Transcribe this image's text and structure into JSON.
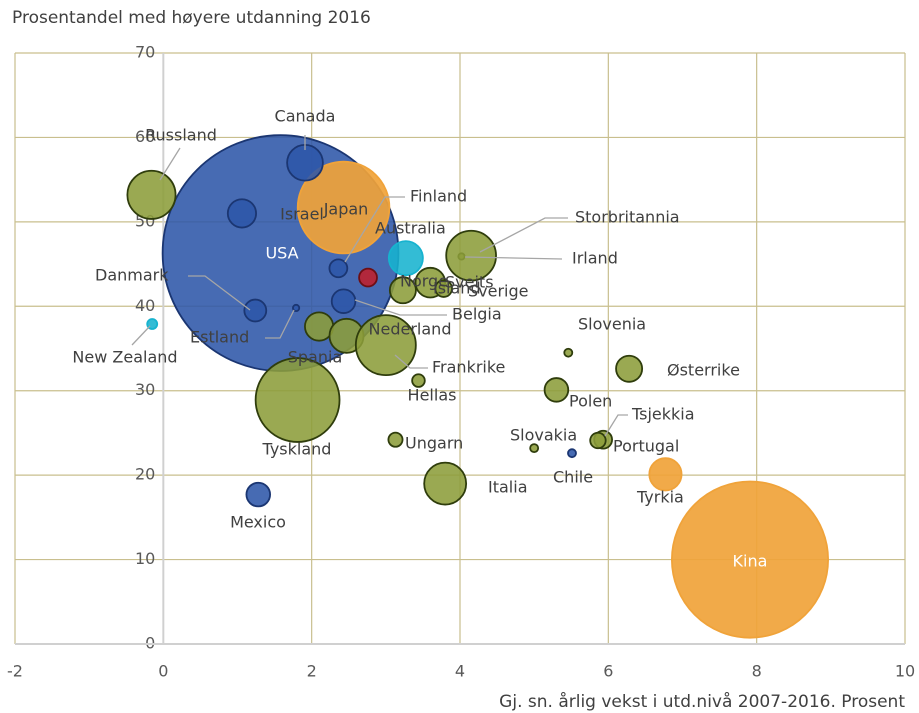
{
  "chart_data": {
    "type": "bubble",
    "title": "Prosentandel med høyere utdanning 2016",
    "x_label": "Gj. sn. årlig vekst i utd.nivå 2007-2016. Prosent",
    "xlim": [
      -2,
      10
    ],
    "xticks": [
      -2,
      0,
      2,
      4,
      6,
      8,
      10
    ],
    "ylim": [
      0,
      70
    ],
    "yticks": [
      0,
      10,
      20,
      30,
      40,
      50,
      60,
      70
    ],
    "grid": true,
    "points": [
      {
        "name": "USA",
        "x": 1.58,
        "y": 46.3,
        "size": 139,
        "color": "#2e57a8"
      },
      {
        "name": "Kina",
        "x": 7.91,
        "y": 10,
        "size": 61,
        "color": "#f0a33a"
      },
      {
        "name": "Tyskland",
        "x": 1.81,
        "y": 28.9,
        "size": 17.6,
        "color": "#8c9d3a"
      },
      {
        "name": "Japan",
        "x": 2.43,
        "y": 51.7,
        "size": 21,
        "color": "#f0a33a"
      },
      {
        "name": "Canada",
        "x": 1.91,
        "y": 57,
        "size": 3.2,
        "color": "#2e57a8"
      },
      {
        "name": "Israel",
        "x": 1.06,
        "y": 51,
        "size": 2,
        "color": "#2e57a8"
      },
      {
        "name": "Russland",
        "x": -0.16,
        "y": 53.2,
        "size": 5.8,
        "color": "#8c9d3a"
      },
      {
        "name": "Finland",
        "x": 2.36,
        "y": 44.5,
        "size": 0.8,
        "color": "#2e57a8"
      },
      {
        "name": "Australia",
        "x": 3.27,
        "y": 45.7,
        "size": 2.9,
        "color": "#17b3cf"
      },
      {
        "name": "Norge",
        "x": 2.76,
        "y": 43.4,
        "size": 0.8,
        "color": "#c01f2b"
      },
      {
        "name": "Sveits",
        "x": 3.6,
        "y": 42.8,
        "size": 2.2,
        "color": "#8c9d3a"
      },
      {
        "name": "Island",
        "x": 3.23,
        "y": 41.9,
        "size": 1.7,
        "color": "#8c9d3a"
      },
      {
        "name": "Sverige",
        "x": 3.78,
        "y": 42.1,
        "size": 0.7,
        "color": "#8c9d3a"
      },
      {
        "name": "Irland",
        "x": 4.02,
        "y": 45.9,
        "size": 0.1,
        "color": "#8c9d3a"
      },
      {
        "name": "Storbritannia",
        "x": 4.15,
        "y": 46,
        "size": 6.2,
        "color": "#8c9d3a"
      },
      {
        "name": "Danmark",
        "x": 1.24,
        "y": 39.5,
        "size": 1.2,
        "color": "#2e57a8"
      },
      {
        "name": "Estland",
        "x": 1.79,
        "y": 39.8,
        "size": 0.1,
        "color": "#2e57a8"
      },
      {
        "name": "Belgia",
        "x": 2.43,
        "y": 40.6,
        "size": 1.4,
        "color": "#2e57a8"
      },
      {
        "name": "Spania",
        "x": 2.1,
        "y": 37.6,
        "size": 2,
        "color": "#8c9d3a"
      },
      {
        "name": "Nederland",
        "x": 2.47,
        "y": 36.5,
        "size": 2.9,
        "color": "#8c9d3a"
      },
      {
        "name": "Frankrike",
        "x": 3,
        "y": 35.4,
        "size": 9,
        "color": "#8c9d3a"
      },
      {
        "name": "Hellas",
        "x": 3.44,
        "y": 31.2,
        "size": 0.4,
        "color": "#8c9d3a"
      },
      {
        "name": "New Zealand",
        "x": -0.15,
        "y": 37.9,
        "size": 0.25,
        "color": "#17b3cf"
      },
      {
        "name": "Slovenia",
        "x": 5.46,
        "y": 34.5,
        "size": 0.16,
        "color": "#8c9d3a"
      },
      {
        "name": "Østerrike",
        "x": 6.28,
        "y": 32.6,
        "size": 1.7,
        "color": "#8c9d3a"
      },
      {
        "name": "Polen",
        "x": 5.3,
        "y": 30.1,
        "size": 1.4,
        "color": "#8c9d3a"
      },
      {
        "name": "Tsjekkia",
        "x": 5.93,
        "y": 24.2,
        "size": 0.8,
        "color": "#8c9d3a"
      },
      {
        "name": "Portugal",
        "x": 5.86,
        "y": 24.1,
        "size": 0.6,
        "color": "#8c9d3a"
      },
      {
        "name": "Slovakia",
        "x": 5,
        "y": 23.2,
        "size": 0.16,
        "color": "#8c9d3a"
      },
      {
        "name": "Chile",
        "x": 5.51,
        "y": 22.6,
        "size": 0.16,
        "color": "#2e57a8"
      },
      {
        "name": "Ungarn",
        "x": 3.13,
        "y": 24.2,
        "size": 0.5,
        "color": "#8c9d3a"
      },
      {
        "name": "Italia",
        "x": 3.8,
        "y": 19,
        "size": 4.4,
        "color": "#8c9d3a"
      },
      {
        "name": "Tyrkia",
        "x": 6.77,
        "y": 20.1,
        "size": 2.6,
        "color": "#f0a33a"
      },
      {
        "name": "Mexico",
        "x": 1.28,
        "y": 17.7,
        "size": 1.4,
        "color": "#2e57a8"
      }
    ]
  }
}
